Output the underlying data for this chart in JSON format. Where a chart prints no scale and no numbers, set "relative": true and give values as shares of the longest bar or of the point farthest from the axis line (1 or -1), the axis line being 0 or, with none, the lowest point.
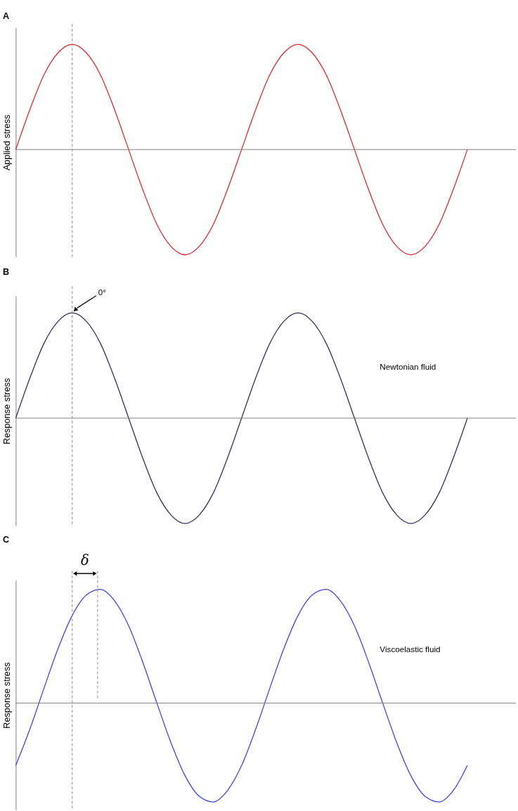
{
  "chart_data": [
    {
      "type": "line",
      "title": "A",
      "ylabel": "Applied stress",
      "relative": true,
      "tick_labels": false,
      "categories": [
        null,
        null,
        null,
        null,
        null,
        null,
        null,
        null,
        null,
        null,
        null,
        null,
        null,
        null,
        null,
        null,
        null,
        null,
        null,
        null,
        null,
        null,
        null,
        null,
        null,
        null,
        null,
        null,
        null,
        null,
        null,
        null,
        null
      ],
      "series": [
        {
          "color": "#e3242b",
          "values": [
            0,
            0.38,
            0.71,
            0.92,
            1,
            0.92,
            0.71,
            0.38,
            0,
            -0.38,
            -0.71,
            -0.92,
            -1,
            -0.92,
            -0.71,
            -0.38,
            0,
            0.38,
            0.71,
            0.92,
            1,
            0.92,
            0.71,
            0.38,
            0,
            -0.38,
            -0.71,
            -0.92,
            -1,
            -0.92,
            -0.71,
            -0.38,
            0
          ]
        }
      ]
    },
    {
      "type": "line",
      "title": "B",
      "ylabel": "Response stress",
      "relative": true,
      "tick_labels": false,
      "categories": [
        null,
        null,
        null,
        null,
        null,
        null,
        null,
        null,
        null,
        null,
        null,
        null,
        null,
        null,
        null,
        null,
        null,
        null,
        null,
        null,
        null,
        null,
        null,
        null,
        null,
        null,
        null,
        null,
        null,
        null,
        null,
        null,
        null
      ],
      "series": [
        {
          "color": "#2f2f5c",
          "values": [
            0,
            0.38,
            0.71,
            0.92,
            1,
            0.92,
            0.71,
            0.38,
            0,
            -0.38,
            -0.71,
            -0.92,
            -1,
            -0.92,
            -0.71,
            -0.38,
            0,
            0.38,
            0.71,
            0.92,
            1,
            0.92,
            0.71,
            0.38,
            0,
            -0.38,
            -0.71,
            -0.92,
            -1,
            -0.92,
            -0.71,
            -0.38,
            0
          ]
        }
      ],
      "annotations": [
        "0°",
        "Newtonian fluid"
      ]
    },
    {
      "type": "line",
      "title": "C",
      "ylabel": "Response stress",
      "relative": true,
      "tick_labels": false,
      "categories": [
        null,
        null,
        null,
        null,
        null,
        null,
        null,
        null,
        null,
        null,
        null,
        null,
        null,
        null,
        null,
        null,
        null,
        null,
        null,
        null,
        null,
        null,
        null,
        null,
        null,
        null,
        null,
        null,
        null,
        null,
        null,
        null,
        null
      ],
      "series": [
        {
          "color": "#4040e8",
          "values": [
            -0.55,
            -0.23,
            0.13,
            0.48,
            0.77,
            0.95,
            1,
            0.9,
            0.68,
            0.36,
            0,
            -0.35,
            -0.64,
            -0.82,
            -0.87,
            -0.77,
            -0.55,
            -0.23,
            0.13,
            0.48,
            0.77,
            0.95,
            1,
            0.9,
            0.68,
            0.36,
            0,
            -0.35,
            -0.64,
            -0.82,
            -0.87,
            -0.77,
            -0.55
          ]
        }
      ],
      "annotations": [
        "δ",
        "Viscoelastic fluid"
      ]
    }
  ]
}
